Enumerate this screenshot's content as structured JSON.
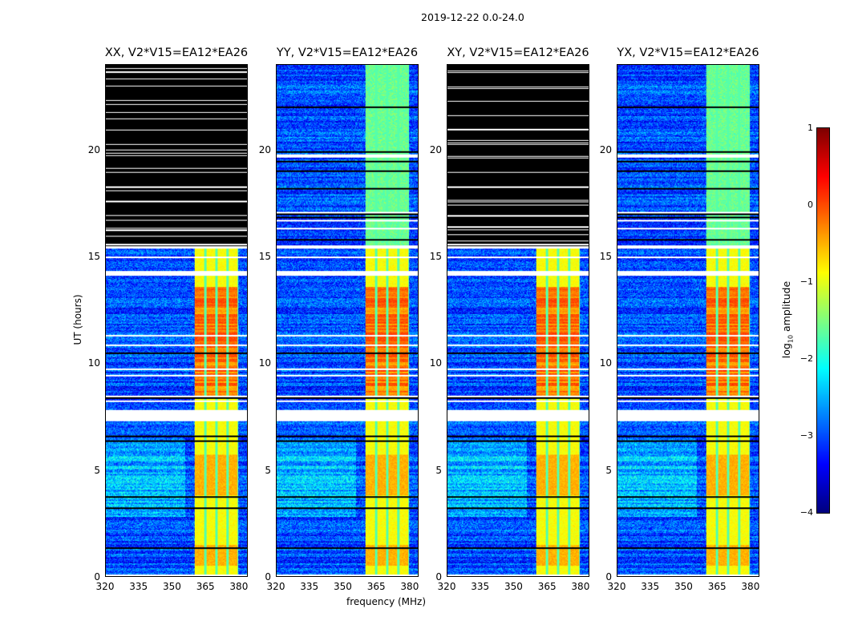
{
  "chart_data": {
    "type": "heatmap",
    "suptitle": "2019-12-22 0.0-24.0",
    "xlabel": "frequency (MHz)",
    "ylabel": "UT (hours)",
    "xlim": [
      320,
      384
    ],
    "ylim": [
      0,
      24
    ],
    "xticks": [
      "320",
      "335",
      "350",
      "365",
      "380"
    ],
    "xtick_values": [
      320,
      335,
      350,
      365,
      380
    ],
    "yticks": [
      "0",
      "5",
      "10",
      "15",
      "20"
    ],
    "ytick_values": [
      0,
      5,
      10,
      15,
      20
    ],
    "panels": [
      {
        "title": "XX, V2*V15=EA12*EA26",
        "flagged_hours": [
          15.5,
          24
        ]
      },
      {
        "title": "YY, V2*V15=EA12*EA26",
        "flagged_hours": null
      },
      {
        "title": "XY, V2*V15=EA12*EA26",
        "flagged_hours": [
          15.5,
          24
        ]
      },
      {
        "title": "YX, V2*V15=EA12*EA26",
        "flagged_hours": null
      }
    ],
    "signal_band_mhz": [
      360,
      380
    ],
    "band_channel_edges_mhz": [
      365,
      370,
      375,
      380
    ],
    "gap_hours": [
      [
        7.3,
        7.8
      ],
      [
        14.1,
        14.3
      ],
      [
        15.4,
        15.55
      ]
    ],
    "colorbar": {
      "label": "log10 amplitude",
      "label_main": "log",
      "label_sub": "10",
      "label_rest": " amplitude",
      "colormap": "jet",
      "range": [
        -4,
        1
      ],
      "ticks": [
        "1",
        "0",
        "−1",
        "−2",
        "−3",
        "−4"
      ],
      "tick_values": [
        1,
        0,
        -1,
        -2,
        -3,
        -4
      ]
    }
  }
}
